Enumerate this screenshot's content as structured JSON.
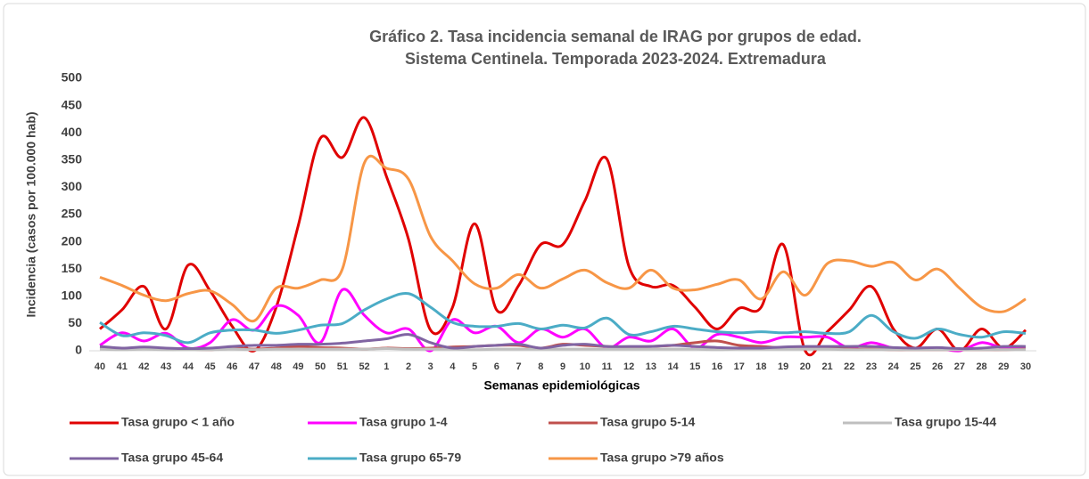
{
  "chart_data": {
    "type": "line",
    "title": "Gráfico 2. Tasa incidencia semanal de IRAG por grupos de edad.",
    "subtitle": "Sistema Centinela. Temporada 2023-2024. Extremadura",
    "x_label": "Semanas epidemiológicas",
    "y_label": "Incidencia (casos por 100.000 hab)",
    "categories": [
      "40",
      "41",
      "42",
      "43",
      "44",
      "45",
      "46",
      "47",
      "48",
      "49",
      "50",
      "51",
      "52",
      "1",
      "2",
      "3",
      "4",
      "5",
      "6",
      "7",
      "8",
      "9",
      "10",
      "11",
      "12",
      "13",
      "14",
      "15",
      "16",
      "17",
      "18",
      "19",
      "20",
      "21",
      "22",
      "23",
      "24",
      "25",
      "26",
      "27",
      "28",
      "29",
      "30"
    ],
    "ylim": [
      0,
      500
    ],
    "yticks": [
      0,
      50,
      100,
      150,
      200,
      250,
      300,
      350,
      400,
      450,
      500
    ],
    "grid": false,
    "legend": "bottom",
    "series": [
      {
        "name": "Tasa grupo < 1 año",
        "color": "#e00000",
        "values": [
          40,
          75,
          118,
          40,
          157,
          110,
          45,
          0,
          80,
          230,
          390,
          355,
          428,
          320,
          205,
          38,
          80,
          233,
          75,
          120,
          195,
          195,
          275,
          352,
          155,
          118,
          120,
          80,
          40,
          78,
          80,
          195,
          0,
          35,
          75,
          118,
          40,
          5,
          40,
          0,
          40,
          5,
          38
        ]
      },
      {
        "name": "Tasa grupo 1-4",
        "color": "#ff00ff",
        "values": [
          10,
          33,
          18,
          32,
          5,
          15,
          57,
          38,
          82,
          65,
          15,
          112,
          65,
          33,
          40,
          0,
          57,
          33,
          45,
          15,
          40,
          25,
          40,
          5,
          25,
          18,
          40,
          5,
          30,
          25,
          15,
          25,
          25,
          25,
          5,
          15,
          5,
          5,
          5,
          0,
          15,
          5,
          5
        ]
      },
      {
        "name": "Tasa grupo 5-14",
        "color": "#c0504d",
        "values": [
          5,
          3,
          5,
          4,
          3,
          2,
          5,
          3,
          5,
          8,
          6,
          5,
          3,
          5,
          4,
          5,
          7,
          8,
          10,
          10,
          5,
          12,
          10,
          8,
          6,
          8,
          10,
          15,
          18,
          10,
          8,
          5,
          5,
          5,
          3,
          3,
          2,
          2,
          2,
          2,
          2,
          2,
          3
        ]
      },
      {
        "name": "Tasa grupo 15-44",
        "color": "#bfbfbf",
        "values": [
          3,
          2,
          3,
          2,
          2,
          2,
          3,
          2,
          3,
          3,
          3,
          3,
          3,
          4,
          3,
          3,
          3,
          2,
          3,
          3,
          3,
          3,
          3,
          3,
          3,
          3,
          3,
          3,
          2,
          3,
          3,
          3,
          3,
          3,
          2,
          2,
          2,
          2,
          2,
          2,
          2,
          2,
          2
        ]
      },
      {
        "name": "Tasa grupo 45-64",
        "color": "#8064a2",
        "values": [
          8,
          5,
          7,
          5,
          4,
          5,
          8,
          10,
          10,
          12,
          12,
          14,
          18,
          22,
          30,
          15,
          5,
          8,
          10,
          12,
          5,
          10,
          12,
          8,
          8,
          8,
          10,
          8,
          6,
          5,
          5,
          7,
          8,
          8,
          8,
          8,
          6,
          5,
          6,
          4,
          5,
          8,
          8
        ]
      },
      {
        "name": "Tasa grupo 65-79",
        "color": "#4bacc6",
        "values": [
          52,
          28,
          33,
          28,
          15,
          33,
          38,
          38,
          32,
          38,
          47,
          50,
          75,
          95,
          105,
          80,
          52,
          45,
          45,
          50,
          40,
          47,
          42,
          60,
          30,
          35,
          45,
          40,
          35,
          33,
          35,
          33,
          35,
          32,
          35,
          65,
          35,
          23,
          40,
          30,
          25,
          35,
          32
        ]
      },
      {
        "name": "Tasa grupo >79 años",
        "color": "#f79646",
        "values": [
          135,
          120,
          102,
          92,
          105,
          110,
          85,
          55,
          115,
          115,
          130,
          150,
          345,
          335,
          315,
          210,
          165,
          123,
          115,
          140,
          115,
          132,
          148,
          125,
          115,
          148,
          115,
          112,
          122,
          130,
          95,
          145,
          102,
          160,
          165,
          155,
          162,
          130,
          150,
          115,
          80,
          72,
          95
        ]
      }
    ]
  }
}
